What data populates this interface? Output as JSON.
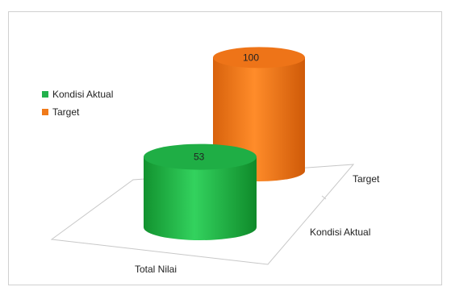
{
  "colors": {
    "kondisi_aktual": "#22b14c",
    "target": "#f07a1a"
  },
  "chart_data": {
    "type": "bar",
    "style": "3d-cylinder",
    "categories": [
      "Total Nilai"
    ],
    "depth_labels": [
      "Kondisi Aktual",
      "Target"
    ],
    "series": [
      {
        "name": "Kondisi Aktual",
        "values": [
          53
        ],
        "color": "#22b14c"
      },
      {
        "name": "Target",
        "values": [
          100
        ],
        "color": "#f07a1a"
      }
    ],
    "ylim": [
      0,
      100
    ],
    "grid": false,
    "legend_position": "left"
  }
}
